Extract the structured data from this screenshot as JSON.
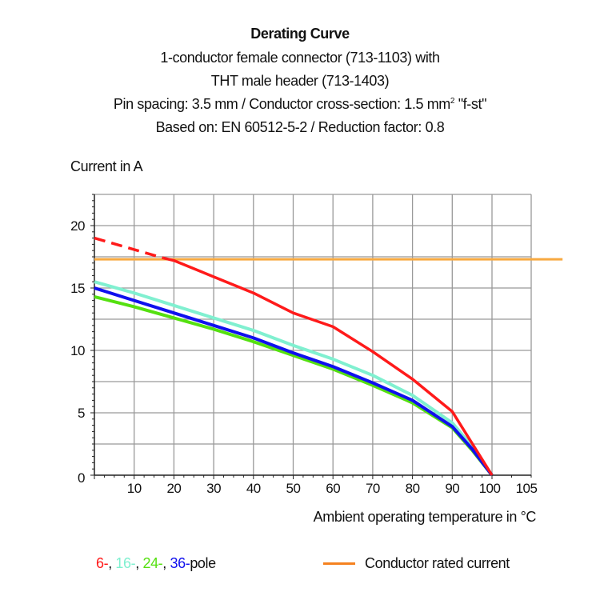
{
  "chart_data": {
    "type": "line",
    "title": "Derating Curve",
    "subtitle_lines": [
      "1-conductor female connector (713-1103) with",
      "THT male header (713-1403)",
      "Pin spacing: 3.5 mm / Conductor cross-section: 1.5 mm",
      "\"f-st\"",
      "Based on: EN 60512-5-2 / Reduction factor: 0.8"
    ],
    "superscript": "2",
    "ylabel": "Current in A",
    "xlabel": "Ambient operating temperature in °C",
    "xticks": [
      10,
      20,
      30,
      40,
      50,
      60,
      70,
      80,
      90,
      100,
      105
    ],
    "yticks": [
      0,
      5,
      10,
      15,
      20
    ],
    "xlim": [
      0,
      105
    ],
    "ylim": [
      0,
      22.5
    ],
    "grid": true,
    "series": [
      {
        "name": "6-",
        "color": "#ff1a1a",
        "x": [
          0,
          17.4,
          20,
          30,
          40,
          50,
          60,
          70,
          80,
          90,
          100
        ],
        "y": [
          19.0,
          17.4,
          17.2,
          15.9,
          14.6,
          13.0,
          11.9,
          9.9,
          7.7,
          5.1,
          0
        ],
        "dashed_until_x": 17.4
      },
      {
        "name": "16-",
        "color": "#80f0d0",
        "x": [
          0,
          10,
          20,
          30,
          40,
          50,
          60,
          70,
          80,
          90,
          95,
          100
        ],
        "y": [
          15.5,
          14.6,
          13.6,
          12.6,
          11.6,
          10.4,
          9.3,
          8.0,
          6.4,
          4.2,
          2.3,
          0
        ]
      },
      {
        "name": "24-",
        "color": "#55e010",
        "x": [
          0,
          10,
          20,
          30,
          40,
          50,
          60,
          70,
          80,
          90,
          95,
          100
        ],
        "y": [
          14.3,
          13.5,
          12.6,
          11.7,
          10.7,
          9.6,
          8.5,
          7.2,
          5.8,
          3.8,
          2.0,
          0
        ]
      },
      {
        "name": "36-",
        "color": "#1010ee",
        "x": [
          0,
          10,
          20,
          30,
          40,
          50,
          60,
          70,
          80,
          90,
          95,
          100
        ],
        "y": [
          15.0,
          14.0,
          13.0,
          12.0,
          11.0,
          9.8,
          8.7,
          7.4,
          6.0,
          3.9,
          2.1,
          0
        ]
      },
      {
        "name": "Conductor rated current",
        "color": "#f7a940",
        "x": [
          0,
          109
        ],
        "y": [
          17.3,
          17.3
        ]
      }
    ],
    "legend": {
      "pole_suffix": "pole",
      "separators": [
        ", ",
        ", ",
        ", "
      ],
      "rated_label": "Conductor rated current",
      "rated_color": "#f58220",
      "placement": "bottom"
    }
  }
}
